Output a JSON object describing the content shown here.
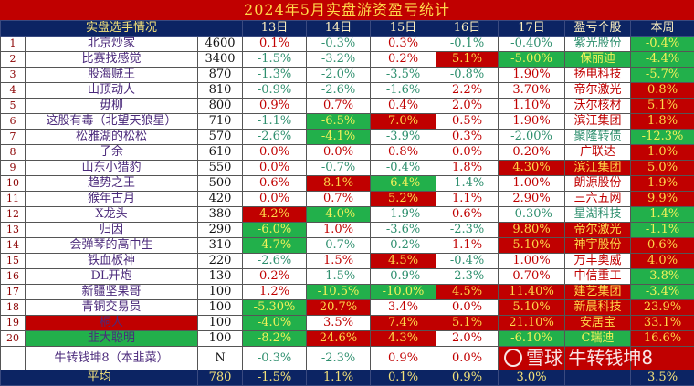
{
  "title": "2024年5月实盘游资盈亏统计",
  "headers": {
    "players": "实盘选手情况",
    "days": [
      "13日",
      "14日",
      "15日",
      "16日",
      "17日"
    ],
    "stock": "盈亏个股",
    "week": "本周"
  },
  "colors": {
    "red_bg": "#c00000",
    "green_bg": "#22b04b",
    "header_bg": "#0c2463",
    "positive_text": "#c00000",
    "negative_text": "#2e8f6e",
    "highlight_text": "#ffd84a"
  },
  "style_legend": {
    "r": "red text",
    "g": "green text",
    "R": "red background",
    "G": "green background"
  },
  "rows": [
    {
      "rank": "1",
      "name": "北京炒家",
      "amount": "4600",
      "days": [
        [
          "0.1%",
          "r"
        ],
        [
          "-0.3%",
          "g"
        ],
        [
          "0.3%",
          "r"
        ],
        [
          "-0.1%",
          "g"
        ],
        [
          "-0.40%",
          "g"
        ]
      ],
      "stock": [
        "紫光股份",
        "g"
      ],
      "week": [
        "-0.4%",
        "G"
      ]
    },
    {
      "rank": "2",
      "name": "比赛找感觉",
      "amount": "3400",
      "days": [
        [
          "-1.5%",
          "g"
        ],
        [
          "-3.2%",
          "g"
        ],
        [
          "0.2%",
          "r"
        ],
        [
          "5.1%",
          "R"
        ],
        [
          "-5.00%",
          "G"
        ]
      ],
      "stock": [
        "保丽迪",
        "G"
      ],
      "week": [
        "-4.4%",
        "G"
      ]
    },
    {
      "rank": "3",
      "name": "股海贼王",
      "amount": "870",
      "days": [
        [
          "-1.3%",
          "g"
        ],
        [
          "-2.0%",
          "g"
        ],
        [
          "-3.5%",
          "g"
        ],
        [
          "-0.8%",
          "g"
        ],
        [
          "1.90%",
          "r"
        ]
      ],
      "stock": [
        "扬电科技",
        "r"
      ],
      "week": [
        "-5.7%",
        "G"
      ]
    },
    {
      "rank": "4",
      "name": "山顶动人",
      "amount": "810",
      "days": [
        [
          "-0.9%",
          "g"
        ],
        [
          "-2.6%",
          "g"
        ],
        [
          "-1.6%",
          "g"
        ],
        [
          "2.2%",
          "r"
        ],
        [
          "3.70%",
          "r"
        ]
      ],
      "stock": [
        "帝尔激光",
        "r"
      ],
      "week": [
        "0.8%",
        "R"
      ]
    },
    {
      "rank": "5",
      "name": "毋柳",
      "amount": "800",
      "days": [
        [
          "0.9%",
          "r"
        ],
        [
          "0.7%",
          "r"
        ],
        [
          "0.4%",
          "r"
        ],
        [
          "2.0%",
          "r"
        ],
        [
          "1.10%",
          "r"
        ]
      ],
      "stock": [
        "沃尔核材",
        "r"
      ],
      "week": [
        "5.1%",
        "R"
      ]
    },
    {
      "rank": "6",
      "name": "这股有毒（北望天狼星）",
      "amount": "710",
      "days": [
        [
          "-1.1%",
          "g"
        ],
        [
          "-6.5%",
          "G"
        ],
        [
          "7.0%",
          "R"
        ],
        [
          "0.5%",
          "r"
        ],
        [
          "1.90%",
          "r"
        ]
      ],
      "stock": [
        "滨江集团",
        "r"
      ],
      "week": [
        "1.8%",
        "R"
      ]
    },
    {
      "rank": "7",
      "name": "松雅湖的松松",
      "amount": "570",
      "days": [
        [
          "-2.6%",
          "g"
        ],
        [
          "-4.1%",
          "G"
        ],
        [
          "-3.9%",
          "g"
        ],
        [
          "0.3%",
          "r"
        ],
        [
          "-2.00%",
          "g"
        ]
      ],
      "stock": [
        "聚隆转债",
        "g"
      ],
      "week": [
        "-12.3%",
        "G"
      ]
    },
    {
      "rank": "8",
      "name": "子余",
      "amount": "610",
      "days": [
        [
          "0.0%",
          "r"
        ],
        [
          "0.0%",
          "r"
        ],
        [
          "0.8%",
          "r"
        ],
        [
          "0.0%",
          "r"
        ],
        [
          "0.20%",
          "r"
        ]
      ],
      "stock": [
        "广联达",
        "r"
      ],
      "week": [
        "1.0%",
        "R"
      ]
    },
    {
      "rank": "9",
      "name": "山东小猎豹",
      "amount": "550",
      "days": [
        [
          "0.0%",
          "r"
        ],
        [
          "-0.7%",
          "g"
        ],
        [
          "-0.4%",
          "g"
        ],
        [
          "1.8%",
          "r"
        ],
        [
          "4.30%",
          "R"
        ]
      ],
      "stock": [
        "滨江集团",
        "R"
      ],
      "week": [
        "5.0%",
        "R"
      ]
    },
    {
      "rank": "10",
      "name": "趋势之王",
      "amount": "500",
      "days": [
        [
          "0.6%",
          "r"
        ],
        [
          "8.1%",
          "R"
        ],
        [
          "-6.4%",
          "G"
        ],
        [
          "-1.4%",
          "g"
        ],
        [
          "1.00%",
          "r"
        ]
      ],
      "stock": [
        "朗源股份",
        "r"
      ],
      "week": [
        "1.9%",
        "R"
      ]
    },
    {
      "rank": "11",
      "name": "猴年古月",
      "amount": "420",
      "days": [
        [
          "0.0%",
          "r"
        ],
        [
          "0.7%",
          "r"
        ],
        [
          "5.2%",
          "R"
        ],
        [
          "1.1%",
          "r"
        ],
        [
          "2.90%",
          "r"
        ]
      ],
      "stock": [
        "三六五网",
        "r"
      ],
      "week": [
        "9.9%",
        "R"
      ]
    },
    {
      "rank": "12",
      "name": "X龙头",
      "amount": "380",
      "days": [
        [
          "4.2%",
          "R"
        ],
        [
          "-4.0%",
          "G"
        ],
        [
          "-1.9%",
          "g"
        ],
        [
          "0.6%",
          "r"
        ],
        [
          "-0.30%",
          "g"
        ]
      ],
      "stock": [
        "星湖科技",
        "g"
      ],
      "week": [
        "-1.4%",
        "G"
      ]
    },
    {
      "rank": "13",
      "name": "归因",
      "amount": "290",
      "days": [
        [
          "-6.0%",
          "G"
        ],
        [
          "1.0%",
          "r"
        ],
        [
          "-3.6%",
          "g"
        ],
        [
          "-2.3%",
          "g"
        ],
        [
          "9.80%",
          "R"
        ]
      ],
      "stock": [
        "帝尔激光",
        "R"
      ],
      "week": [
        "-1.1%",
        "G"
      ]
    },
    {
      "rank": "14",
      "name": "会弹琴的高中生",
      "amount": "310",
      "days": [
        [
          "-4.7%",
          "G"
        ],
        [
          "-0.7%",
          "g"
        ],
        [
          "-0.2%",
          "g"
        ],
        [
          "1.1%",
          "r"
        ],
        [
          "5.10%",
          "R"
        ]
      ],
      "stock": [
        "神宇股份",
        "R"
      ],
      "week": [
        "0.6%",
        "R"
      ]
    },
    {
      "rank": "15",
      "name": "铁血板神",
      "amount": "220",
      "days": [
        [
          "-2.6%",
          "g"
        ],
        [
          "1.5%",
          "r"
        ],
        [
          "4.5%",
          "R"
        ],
        [
          "-0.4%",
          "g"
        ],
        [
          "1.00%",
          "r"
        ]
      ],
      "stock": [
        "万丰奥威",
        "r"
      ],
      "week": [
        "4.0%",
        "R"
      ]
    },
    {
      "rank": "16",
      "name": "DL开炮",
      "amount": "130",
      "days": [
        [
          "0.2%",
          "r"
        ],
        [
          "-1.5%",
          "g"
        ],
        [
          "-0.9%",
          "g"
        ],
        [
          "-2.3%",
          "g"
        ],
        [
          "0.70%",
          "r"
        ]
      ],
      "stock": [
        "中信重工",
        "r"
      ],
      "week": [
        "-3.8%",
        "G"
      ]
    },
    {
      "rank": "17",
      "name": "新疆坚果哥",
      "amount": "100",
      "days": [
        [
          "1.2%",
          "r"
        ],
        [
          "-10.5%",
          "G"
        ],
        [
          "-10.0%",
          "G"
        ],
        [
          "4.5%",
          "R"
        ],
        [
          "11.40%",
          "R"
        ]
      ],
      "stock": [
        "建艺集团",
        "R"
      ],
      "week": [
        "-3.4%",
        "G"
      ]
    },
    {
      "rank": "18",
      "name": "青铜交易员",
      "amount": "100",
      "days": [
        [
          "-5.30%",
          "G"
        ],
        [
          "20.7%",
          "R"
        ],
        [
          "3.4%",
          "r"
        ],
        [
          "0.0%",
          "r"
        ],
        [
          "5.10%",
          "R"
        ]
      ],
      "stock": [
        "新晨科技",
        "R"
      ],
      "week": [
        "23.9%",
        "R"
      ]
    },
    {
      "rank": "19",
      "name": "桐人",
      "name_style": "R",
      "amount": "100",
      "days": [
        [
          "-4.0%",
          "G"
        ],
        [
          "3.5%",
          "r"
        ],
        [
          "7.4%",
          "R"
        ],
        [
          "5.1%",
          "R"
        ],
        [
          "21.10%",
          "R"
        ]
      ],
      "stock": [
        "安居宝",
        "R"
      ],
      "week": [
        "33.1%",
        "R"
      ]
    },
    {
      "rank": "20",
      "name": "韭大聪明",
      "name_style": "G",
      "amount": "100",
      "days": [
        [
          "-8.2%",
          "G"
        ],
        [
          "24.6%",
          "R"
        ],
        [
          "4.3%",
          "R"
        ],
        [
          "2.0%",
          "r"
        ],
        [
          "-6.10%",
          "G"
        ]
      ],
      "stock": [
        "C瑞迪",
        "G"
      ],
      "week": [
        "16.6%",
        "R"
      ]
    },
    {
      "rank": "",
      "name": "牛转钱坤8（本韭菜）",
      "amount": "N",
      "days": [
        [
          "-0.3%",
          "g"
        ],
        [
          "-2.3%",
          "g"
        ],
        [
          "0.9%",
          "r"
        ],
        [
          "0.0%",
          "r"
        ],
        [
          "",
          "R"
        ]
      ],
      "stock": [
        "",
        "R"
      ],
      "week": [
        "",
        "R"
      ]
    }
  ],
  "average": {
    "label": "平均",
    "amount": "780",
    "days": [
      "-1.5%",
      "1.1%",
      "0.1%",
      "0.9%",
      "3.0%"
    ],
    "stock": "",
    "week": "3.5%"
  },
  "watermark": "雪球 牛转钱坤8"
}
